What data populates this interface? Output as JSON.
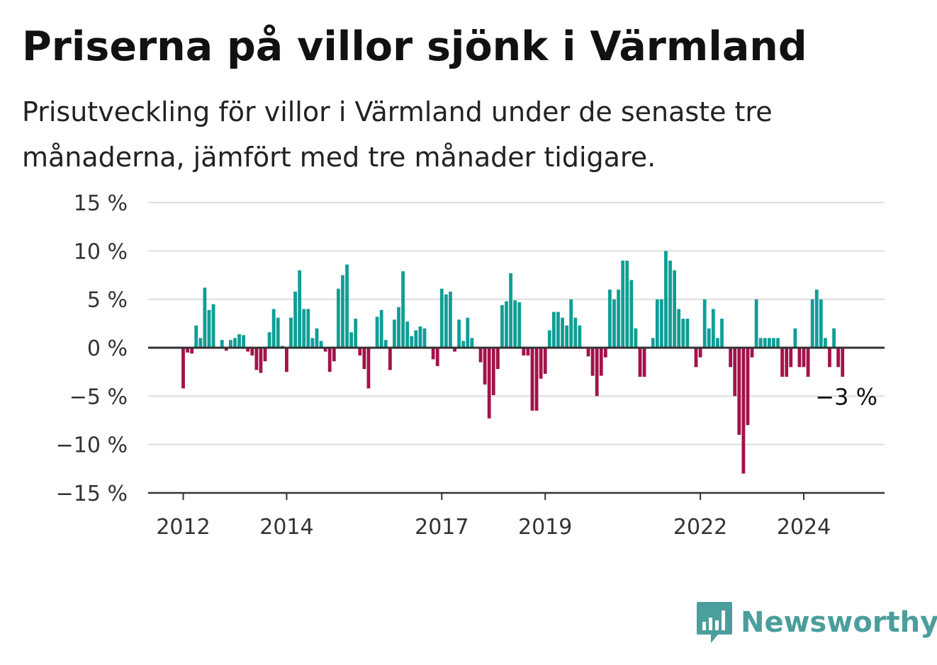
{
  "chart_data": {
    "type": "bar",
    "title": "Priserna på villor sjönk i Värmland",
    "subtitle": "Prisutveckling för villor i Värmland under de senaste tre månaderna, jämfört med tre månader tidigare.",
    "ylim": [
      -15,
      15
    ],
    "y_ticks": [
      {
        "value": 15,
        "label": "15 %"
      },
      {
        "value": 10,
        "label": "10 %"
      },
      {
        "value": 5,
        "label": "5 %"
      },
      {
        "value": 0,
        "label": "0 %"
      },
      {
        "value": -5,
        "label": "−5 %"
      },
      {
        "value": -10,
        "label": "−10 %"
      },
      {
        "value": -15,
        "label": "−15 %"
      }
    ],
    "x_ticks": [
      {
        "index": 0,
        "label": "2012"
      },
      {
        "index": 24,
        "label": "2014"
      },
      {
        "index": 60,
        "label": "2017"
      },
      {
        "index": 84,
        "label": "2019"
      },
      {
        "index": 120,
        "label": "2022"
      },
      {
        "index": 144,
        "label": "2024"
      }
    ],
    "start_label": "2012",
    "colors": {
      "positive": "#0f9e96",
      "negative": "#a3124a"
    },
    "grid": true,
    "last_value_label": "−3 %",
    "values": [
      -4.2,
      -0.5,
      -0.6,
      2.3,
      1.0,
      6.2,
      3.9,
      4.5,
      0,
      0.8,
      -0.3,
      0.8,
      1.0,
      1.4,
      1.3,
      -0.4,
      -0.8,
      -2.3,
      -2.6,
      -1.4,
      1.6,
      4.0,
      3.1,
      0.2,
      -2.5,
      3.1,
      5.8,
      8.0,
      4.0,
      4.0,
      1.0,
      2.0,
      0.7,
      -0.4,
      -2.5,
      -1.4,
      6.1,
      7.5,
      8.6,
      1.6,
      3.0,
      -0.8,
      -2.2,
      -4.2,
      0,
      3.2,
      3.9,
      0.8,
      -2.3,
      2.9,
      4.2,
      7.9,
      2.7,
      1.2,
      1.8,
      2.2,
      2.0,
      0,
      -1.2,
      -1.9,
      6.1,
      5.5,
      5.8,
      -0.4,
      2.9,
      0.7,
      3.1,
      1.0,
      0,
      -1.5,
      -3.8,
      -7.3,
      -4.9,
      -2.2,
      4.4,
      4.8,
      7.7,
      4.9,
      4.7,
      -0.8,
      -0.8,
      -6.5,
      -6.5,
      -3.2,
      -2.7,
      1.8,
      3.7,
      3.7,
      3.1,
      2.3,
      5.0,
      3.1,
      2.3,
      0,
      -0.9,
      -2.9,
      -5.0,
      -2.9,
      -1.0,
      6.0,
      5.0,
      6.0,
      9.0,
      9.0,
      7.0,
      2.0,
      -3.0,
      -3.0,
      0,
      1.0,
      5.0,
      5.0,
      10.0,
      9.0,
      8.0,
      4.0,
      3.0,
      3.0,
      0,
      -2.0,
      -1.0,
      5.0,
      2.0,
      4.0,
      1.0,
      3.0,
      0,
      -2.0,
      -5.0,
      -9.0,
      -13.0,
      -8.0,
      -1.0,
      5.0,
      1.0,
      1.0,
      1.0,
      1.0,
      1.0,
      -3.0,
      -3.0,
      -2.0,
      2.0,
      -2.0,
      -2.0,
      -3.0,
      5.0,
      6.0,
      5.0,
      1.0,
      -2.0,
      2.0,
      -2.0,
      -3.0
    ]
  },
  "brand": {
    "name": "Newsworthy",
    "icon": "bar-chart-logo-icon",
    "color": "#4a9e9c"
  }
}
